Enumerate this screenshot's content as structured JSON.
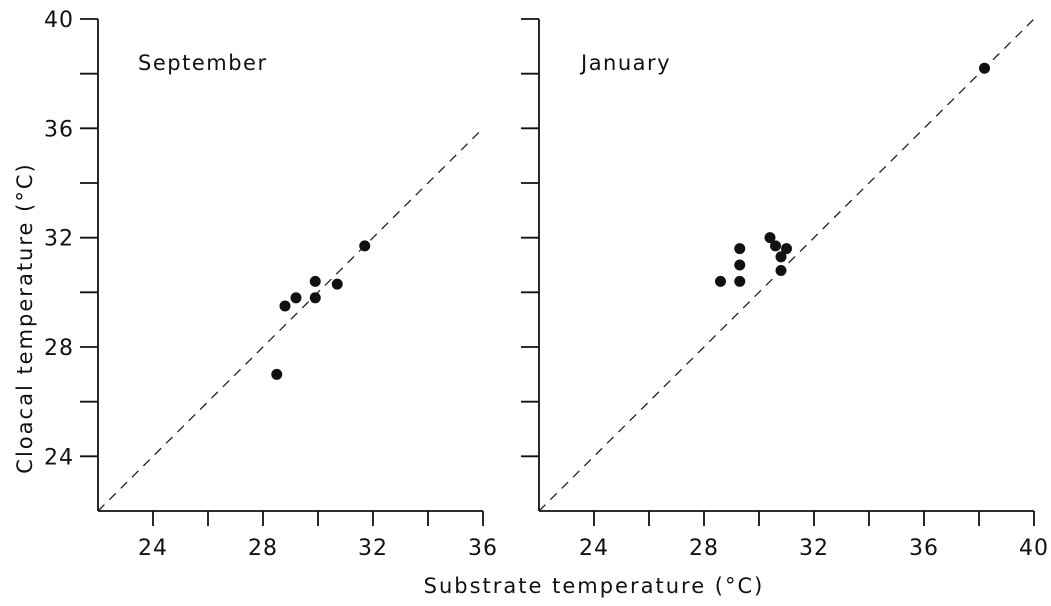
{
  "chart_data": {
    "type": "scatter",
    "xlabel": "Substrate temperature (°C)",
    "ylabel": "Cloacal temperature (°C)",
    "ylim": [
      22,
      40
    ],
    "y_ticks_major": [
      24,
      28,
      32,
      36,
      40
    ],
    "grid": false,
    "legend": "none",
    "reference_line": "y = x (dashed)",
    "panels": [
      {
        "title": "September",
        "xlim": [
          22,
          36
        ],
        "x_ticks_major": [
          24,
          28,
          32,
          36
        ],
        "points": [
          {
            "x": 28.5,
            "y": 27.0
          },
          {
            "x": 28.8,
            "y": 29.5
          },
          {
            "x": 29.2,
            "y": 29.8
          },
          {
            "x": 29.9,
            "y": 30.4
          },
          {
            "x": 29.9,
            "y": 29.8
          },
          {
            "x": 30.7,
            "y": 30.3
          },
          {
            "x": 31.7,
            "y": 31.7
          }
        ]
      },
      {
        "title": "January",
        "xlim": [
          22,
          40
        ],
        "x_ticks_major": [
          24,
          28,
          32,
          36,
          40
        ],
        "points": [
          {
            "x": 28.6,
            "y": 30.4
          },
          {
            "x": 29.3,
            "y": 31.6
          },
          {
            "x": 29.3,
            "y": 31.0
          },
          {
            "x": 29.3,
            "y": 30.4
          },
          {
            "x": 30.4,
            "y": 32.0
          },
          {
            "x": 30.6,
            "y": 31.7
          },
          {
            "x": 30.8,
            "y": 31.3
          },
          {
            "x": 30.8,
            "y": 30.8
          },
          {
            "x": 31.0,
            "y": 31.6
          },
          {
            "x": 38.2,
            "y": 38.2
          }
        ]
      }
    ]
  }
}
